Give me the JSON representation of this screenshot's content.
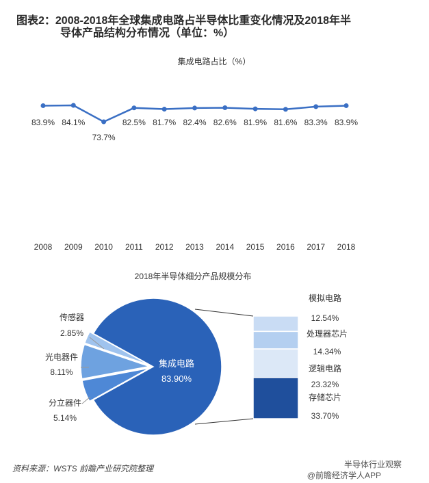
{
  "title_line1": "图表2：2008-2018年全球集成电路占半导体比重变化情况及2018年半",
  "title_line2": "导体产品结构分布情况（单位：%）",
  "source": "资料来源：WSTS 前瞻产业研究院整理",
  "watermark_top": "半导体行业观察",
  "watermark_bottom": "@前瞻经济学人APP",
  "chart_data": [
    {
      "type": "line",
      "title": "集成电路占比（%）",
      "x": [
        "2008",
        "2009",
        "2010",
        "2011",
        "2012",
        "2013",
        "2014",
        "2015",
        "2016",
        "2017",
        "2018"
      ],
      "series": [
        {
          "values": [
            83.9,
            84.1,
            73.7,
            82.5,
            81.7,
            82.4,
            82.6,
            81.9,
            81.6,
            83.3,
            83.9
          ]
        }
      ],
      "data_labels": [
        "83.9%",
        "84.1%",
        "73.7%",
        "82.5%",
        "81.7%",
        "82.4%",
        "82.6%",
        "81.9%",
        "81.6%",
        "83.3%",
        "83.9%"
      ],
      "color": "#3a6fc4"
    },
    {
      "type": "pie",
      "title": "2018年半导体细分产品规模分布",
      "slices": [
        {
          "label": "集成电路",
          "value": 83.9,
          "value_label": "83.90%",
          "color": "#2a62b8"
        },
        {
          "label": "分立器件",
          "value": 5.14,
          "value_label": "5.14%",
          "color": "#4e88d6"
        },
        {
          "label": "光电器件",
          "value": 8.11,
          "value_label": "8.11%",
          "color": "#6ea2e0"
        },
        {
          "label": "传感器",
          "value": 2.85,
          "value_label": "2.85%",
          "color": "#9fc3ee"
        }
      ],
      "breakdown": {
        "of": "集成电路",
        "segments": [
          {
            "label": "模拟电路",
            "value": 12.54,
            "value_label": "12.54%",
            "color": "#c9dcf4"
          },
          {
            "label": "处理器芯片",
            "value": 14.34,
            "value_label": "14.34%",
            "color": "#b4cff0"
          },
          {
            "label": "逻辑电路",
            "value": 23.32,
            "value_label": "23.32%",
            "color": "#dce8f7"
          },
          {
            "label": "存储芯片",
            "value": 33.7,
            "value_label": "33.70%",
            "color": "#1f4f9c"
          }
        ]
      }
    }
  ]
}
